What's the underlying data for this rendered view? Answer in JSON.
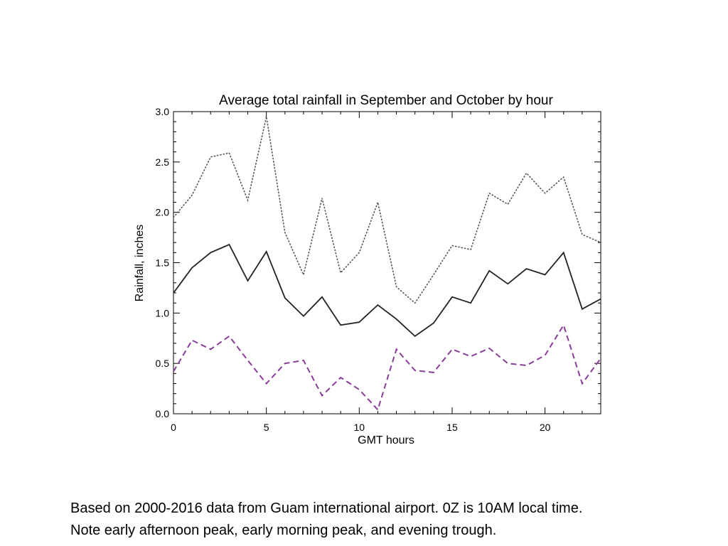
{
  "chart_data": {
    "type": "line",
    "title": "Average total rainfall in September and October by hour",
    "xlabel": "GMT hours",
    "ylabel": "Rainfall, inches",
    "xlim": [
      0,
      23
    ],
    "ylim": [
      0,
      3.0
    ],
    "xticks": [
      0,
      5,
      10,
      15,
      20
    ],
    "yticks": [
      "0.0",
      "0.5",
      "1.0",
      "1.5",
      "2.0",
      "2.5",
      "3.0"
    ],
    "grid": false,
    "x": [
      0,
      1,
      2,
      3,
      4,
      5,
      6,
      7,
      8,
      9,
      10,
      11,
      12,
      13,
      14,
      15,
      16,
      17,
      18,
      19,
      20,
      21,
      22,
      23
    ],
    "series": [
      {
        "style": "dotted",
        "color": "#555555",
        "values": [
          1.95,
          2.17,
          2.55,
          2.59,
          2.12,
          2.95,
          1.8,
          1.38,
          2.14,
          1.4,
          1.6,
          2.1,
          1.26,
          1.1,
          1.38,
          1.67,
          1.63,
          2.19,
          2.08,
          2.39,
          2.19,
          2.35,
          1.78,
          1.7
        ]
      },
      {
        "style": "solid",
        "color": "#222222",
        "values": [
          1.2,
          1.45,
          1.6,
          1.68,
          1.32,
          1.61,
          1.15,
          0.97,
          1.16,
          0.88,
          0.91,
          1.08,
          0.94,
          0.77,
          0.9,
          1.16,
          1.1,
          1.42,
          1.29,
          1.44,
          1.38,
          1.6,
          1.04,
          1.14
        ]
      },
      {
        "style": "dashed",
        "color": "#8a3c9a",
        "values": [
          0.42,
          0.73,
          0.64,
          0.77,
          0.53,
          0.3,
          0.5,
          0.53,
          0.18,
          0.36,
          0.24,
          0.04,
          0.64,
          0.43,
          0.41,
          0.64,
          0.57,
          0.65,
          0.5,
          0.48,
          0.58,
          0.88,
          0.3,
          0.55
        ]
      }
    ]
  },
  "caption": {
    "line1": "Based on 2000-2016 data from Guam international airport.   0Z is 10AM local time.",
    "line2": "Note early afternoon peak, early morning peak, and evening trough."
  }
}
